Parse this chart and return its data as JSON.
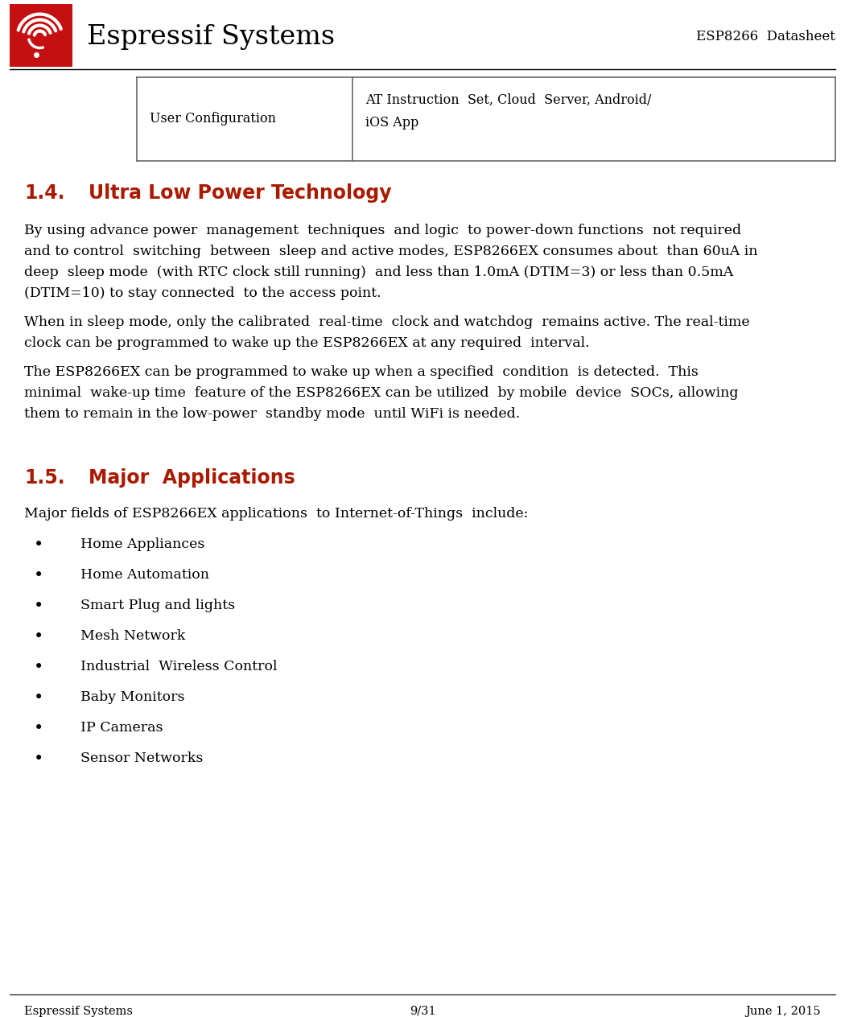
{
  "page_bg": "#ffffff",
  "line_color": "#000000",
  "logo_text": "Espressif Systems",
  "logo_text_color": "#000000",
  "header_right_text": "ESP8266  Datasheet",
  "header_right_color": "#000000",
  "logo_box_color": "#c41010",
  "table_col1_text": "User Configuration",
  "table_col2_line1": "AT Instruction  Set, Cloud  Server, Android/",
  "table_col2_line2": "iOS App",
  "section_14_num": "1.4.",
  "section_14_title": "Ultra Low Power Technology",
  "section_14_color": "#aa1a00",
  "section_14_fontsize": 17,
  "body_14_paragraphs": [
    "By using advance power  management  techniques  and logic  to power-down functions  not required\nand to control  switching  between  sleep and active modes, ESP8266EX consumes about  than 60uA in\ndeep  sleep mode  (with RTC clock still running)  and less than 1.0mA (DTIM=3) or less than 0.5mA\n(DTIM=10) to stay connected  to the access point.",
    "When in sleep mode, only the calibrated  real-time  clock and watchdog  remains active. The real-time\nclock can be programmed to wake up the ESP8266EX at any required  interval.",
    "The ESP8266EX can be programmed to wake up when a specified  condition  is detected.  This\nminimal  wake-up time  feature of the ESP8266EX can be utilized  by mobile  device  SOCs, allowing\nthem to remain in the low-power  standby mode  until WiFi is needed."
  ],
  "section_15_num": "1.5.",
  "section_15_title": "Major  Applications",
  "section_15_color": "#aa1a00",
  "section_15_fontsize": 17,
  "body_15_intro": "Major fields of ESP8266EX applications  to Internet-of-Things  include:",
  "bullet_items": [
    "Home Appliances",
    "Home Automation",
    "Smart Plug and lights",
    "Mesh Network",
    "Industrial  Wireless Control",
    "Baby Monitors",
    "IP Cameras",
    "Sensor Networks"
  ],
  "footer_left": "Espressif Systems",
  "footer_center": "9/31",
  "footer_right": "June 1, 2015",
  "footer_color": "#000000",
  "body_fontsize": 12.5,
  "body_color": "#000000",
  "table_border_color": "#666666",
  "header_border_color": "#000000"
}
